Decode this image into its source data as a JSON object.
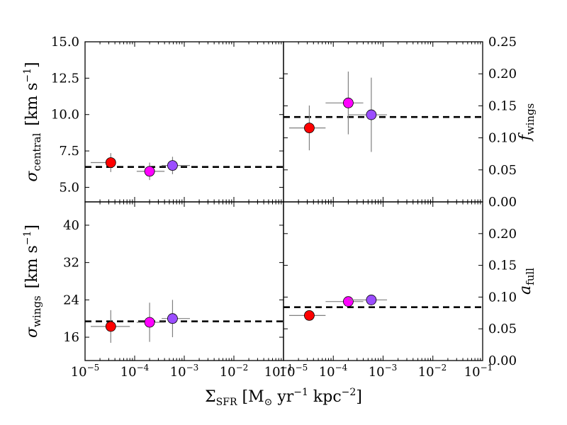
{
  "chart_data": {
    "type": "scatter",
    "x_axis": {
      "label_main": "Σ",
      "label_sub": "SFR",
      "label_rest": " [M",
      "label_sun": "⊙",
      "label_yr": " yr",
      "label_yr_exp": "−1",
      "label_kpc": " kpc",
      "label_kpc_exp": "−2",
      "label_close": "]",
      "scale": "log",
      "range_exp": [
        -5,
        -1
      ],
      "tick_base": "10",
      "left_ticks": [
        "−5",
        "−4",
        "−3",
        "−2",
        "−1"
      ],
      "right_ticks": [
        "−5",
        "−4",
        "−3",
        "−2",
        "−1"
      ]
    },
    "point_colors": [
      "#ff0000",
      "#ff00ff",
      "#9b4dff"
    ],
    "panels": [
      {
        "id": "sigma_central",
        "position": "top-left",
        "ylabel_main": "σ",
        "ylabel_sub": "central",
        "ylabel_units": "[km s",
        "ylabel_units_exp": "−1",
        "ylabel_units_close": "]",
        "ylim": [
          4.0,
          15.0
        ],
        "yticks": [
          5.0,
          7.5,
          10.0,
          12.5,
          15.0
        ],
        "ytick_labels": [
          "5.0",
          "7.5",
          "10.0",
          "12.5",
          "15.0"
        ],
        "tick_side": "left",
        "reference_y": 6.4,
        "points": [
          {
            "x": 3.3e-05,
            "y": 6.7,
            "xerr_lo": 1.3e-05,
            "xerr_hi": 3.5e-05,
            "yerr": 0.65
          },
          {
            "x": 0.0002,
            "y": 6.1,
            "xerr_lo": 0.00011,
            "xerr_hi": 0.0004,
            "yerr": 0.6
          },
          {
            "x": 0.00058,
            "y": 6.5,
            "xerr_lo": 0.00035,
            "xerr_hi": 0.0013,
            "yerr": 0.6
          }
        ]
      },
      {
        "id": "f_wings",
        "position": "top-right",
        "ylabel_main": "f",
        "ylabel_sub": "wings",
        "ylim": [
          0.0,
          0.25
        ],
        "yticks": [
          0.0,
          0.05,
          0.1,
          0.15,
          0.2,
          0.25
        ],
        "ytick_labels": [
          "0.00",
          "0.05",
          "0.10",
          "0.15",
          "0.20",
          "0.25"
        ],
        "tick_side": "right",
        "reference_y": 0.1325,
        "points": [
          {
            "x": 3.3e-05,
            "y": 0.1155,
            "xerr_lo": 1.3e-05,
            "xerr_hi": 7e-05,
            "yerr": 0.035
          },
          {
            "x": 0.0002,
            "y": 0.1545,
            "xerr_lo": 7e-05,
            "xerr_hi": 0.0004,
            "yerr": 0.049
          },
          {
            "x": 0.00058,
            "y": 0.136,
            "xerr_lo": 0.0002,
            "xerr_hi": 0.0012,
            "yerr": 0.058
          }
        ]
      },
      {
        "id": "sigma_wings",
        "position": "bottom-left",
        "ylabel_main": "σ",
        "ylabel_sub": "wings",
        "ylabel_units": "[km s",
        "ylabel_units_exp": "−1",
        "ylabel_units_close": "]",
        "ylim": [
          11.0,
          45.0
        ],
        "yticks": [
          16,
          24,
          32,
          40
        ],
        "ytick_labels": [
          "16",
          "24",
          "32",
          "40"
        ],
        "tick_side": "left",
        "reference_y": 19.4,
        "points": [
          {
            "x": 3.3e-05,
            "y": 18.3,
            "xerr_lo": 1.3e-05,
            "xerr_hi": 8e-05,
            "yerr": 3.5
          },
          {
            "x": 0.0002,
            "y": 19.2,
            "xerr_lo": 0.00011,
            "xerr_hi": 0.0004,
            "yerr": 4.2
          },
          {
            "x": 0.00058,
            "y": 20.0,
            "xerr_lo": 0.00035,
            "xerr_hi": 0.0013,
            "yerr": 4.0
          }
        ]
      },
      {
        "id": "a_full",
        "position": "bottom-right",
        "ylabel_main": "a",
        "ylabel_sub": "full",
        "ylim": [
          0.0,
          0.25
        ],
        "yticks": [
          0.0,
          0.05,
          0.1,
          0.15,
          0.2
        ],
        "ytick_labels": [
          "0.00",
          "0.05",
          "0.10",
          "0.15",
          "0.20"
        ],
        "tick_side": "right",
        "reference_y": 0.084,
        "points": [
          {
            "x": 3.3e-05,
            "y": 0.071,
            "xerr_lo": 1.3e-05,
            "xerr_hi": 7e-05,
            "yerr": 0.0
          },
          {
            "x": 0.0002,
            "y": 0.093,
            "xerr_lo": 7e-05,
            "xerr_hi": 0.0004,
            "yerr": 0.0
          },
          {
            "x": 0.00058,
            "y": 0.0955,
            "xerr_lo": 0.0002,
            "xerr_hi": 0.0012,
            "yerr": 0.006
          }
        ]
      }
    ]
  }
}
